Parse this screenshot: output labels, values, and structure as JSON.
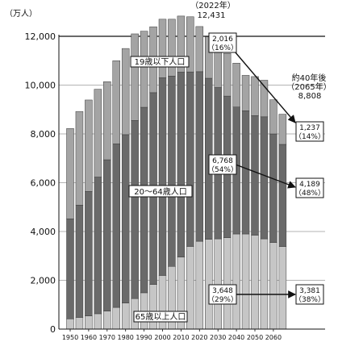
{
  "chart_data": {
    "type": "bar",
    "stacked": true,
    "unit_label": "（万人）",
    "x": [
      1950,
      1955,
      1960,
      1965,
      1970,
      1975,
      1980,
      1985,
      1990,
      1995,
      2000,
      2005,
      2010,
      2015,
      2020,
      2025,
      2030,
      2035,
      2040,
      2045,
      2050,
      2055,
      2060,
      2065
    ],
    "xticks": [
      1950,
      1960,
      1970,
      1980,
      1990,
      2000,
      2010,
      2020,
      2030,
      2040,
      2050,
      2060
    ],
    "ylim": [
      0,
      12000
    ],
    "yticks": [
      0,
      2000,
      4000,
      6000,
      8000,
      10000,
      12000
    ],
    "ytick_labels": [
      "0",
      "2,000",
      "4,000",
      "6,000",
      "8,000",
      "10,000",
      "12,000"
    ],
    "series": [
      {
        "name": "65歳以上人口",
        "color": "#c6c6c6",
        "values": [
          420,
          480,
          540,
          630,
          740,
          890,
          1070,
          1250,
          1490,
          1830,
          2200,
          2570,
          2950,
          3390,
          3600,
          3680,
          3700,
          3750,
          3900,
          3900,
          3850,
          3700,
          3550,
          3381
        ]
      },
      {
        "name": "20〜64歳人口",
        "color": "#6a6a6a",
        "values": [
          4100,
          4600,
          5100,
          5600,
          6200,
          6700,
          6900,
          7300,
          7600,
          7860,
          8100,
          7800,
          7580,
          7150,
          6950,
          6600,
          6200,
          5800,
          5200,
          5050,
          4900,
          5000,
          4450,
          4189
        ]
      },
      {
        "name": "19歳以下人口",
        "color": "#a4a4a4",
        "values": [
          3700,
          3840,
          3750,
          3600,
          3200,
          3410,
          3530,
          3550,
          3120,
          2700,
          2400,
          2330,
          2300,
          2260,
          1850,
          1700,
          1820,
          1750,
          1800,
          1450,
          1600,
          1500,
          1400,
          1237
        ]
      }
    ],
    "annotations": {
      "peak": {
        "year_text": "（2022年）",
        "value_text": "12,431"
      },
      "future": {
        "line1": "約40年後",
        "line2": "（2065年）",
        "value_text": "8,808"
      },
      "callouts": [
        {
          "left_value": "2,016",
          "left_pct": "（16%）",
          "right_value": "1,237",
          "right_pct": "（14%）"
        },
        {
          "left_value": "6,768",
          "left_pct": "（54%）",
          "right_value": "4,189",
          "right_pct": "（48%）"
        },
        {
          "left_value": "3,648",
          "left_pct": "（29%）",
          "right_value": "3,381",
          "right_pct": "（38%）"
        }
      ]
    }
  }
}
